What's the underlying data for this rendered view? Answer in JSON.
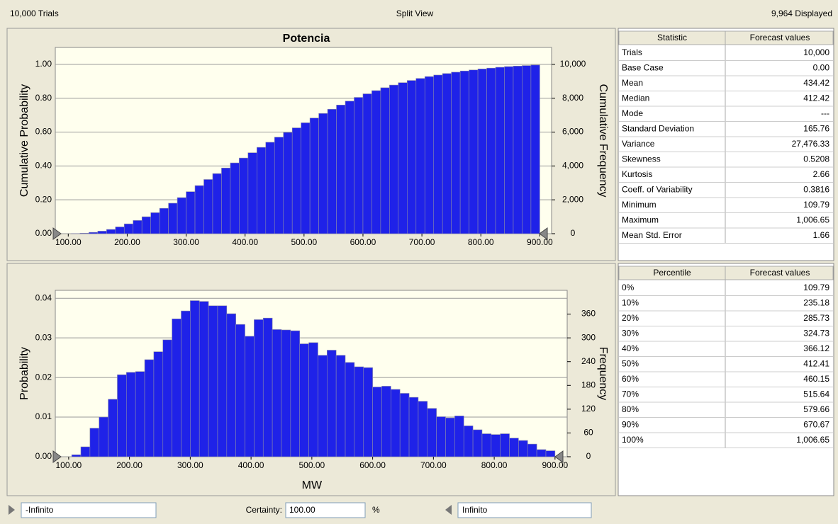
{
  "header": {
    "trials": "10,000 Trials",
    "view": "Split View",
    "displayed": "9,964 Displayed"
  },
  "chart_data": [
    {
      "type": "histogram",
      "title": "Potencia",
      "ylabel": "Cumulative Probability",
      "y2label": "Cumulative Frequency",
      "color": "#1f22e8",
      "grid": true,
      "bins": [
        105,
        120,
        135,
        150,
        165,
        180,
        195,
        210,
        225,
        240,
        255,
        270,
        285,
        300,
        315,
        330,
        345,
        360,
        375,
        390,
        405,
        420,
        435,
        450,
        465,
        480,
        495,
        510,
        525,
        540,
        555,
        570,
        585,
        600,
        615,
        630,
        645,
        660,
        675,
        690,
        705,
        720,
        735,
        750,
        765,
        780,
        795,
        810,
        825,
        840,
        855,
        870,
        885,
        900
      ],
      "values": [
        0.001,
        0.003,
        0.008,
        0.015,
        0.025,
        0.04,
        0.058,
        0.078,
        0.1,
        0.124,
        0.15,
        0.18,
        0.213,
        0.248,
        0.284,
        0.32,
        0.355,
        0.388,
        0.418,
        0.447,
        0.478,
        0.51,
        0.54,
        0.57,
        0.598,
        0.625,
        0.655,
        0.683,
        0.71,
        0.735,
        0.76,
        0.783,
        0.805,
        0.826,
        0.845,
        0.862,
        0.878,
        0.892,
        0.905,
        0.917,
        0.928,
        0.937,
        0.946,
        0.954,
        0.961,
        0.967,
        0.973,
        0.978,
        0.983,
        0.987,
        0.99,
        0.993,
        0.996
      ],
      "xlim": [
        78,
        920
      ],
      "xticks": [
        {
          "value": 100,
          "label": "100.00"
        },
        {
          "value": 200,
          "label": "200.00"
        },
        {
          "value": 300,
          "label": "300.00"
        },
        {
          "value": 400,
          "label": "400.00"
        },
        {
          "value": 500,
          "label": "500.00"
        },
        {
          "value": 600,
          "label": "600.00"
        },
        {
          "value": 700,
          "label": "700.00"
        },
        {
          "value": 800,
          "label": "800.00"
        },
        {
          "value": 900,
          "label": "900.00"
        }
      ],
      "ylim": [
        0,
        1.1
      ],
      "yticks": [
        {
          "value": 0,
          "label": "0.00"
        },
        {
          "value": 0.2,
          "label": "0.20"
        },
        {
          "value": 0.4,
          "label": "0.40"
        },
        {
          "value": 0.6,
          "label": "0.60"
        },
        {
          "value": 0.8,
          "label": "0.80"
        },
        {
          "value": 1,
          "label": "1.00"
        }
      ],
      "y2lim": [
        0,
        11000
      ],
      "y2ticks": [
        0,
        {
          "value": 2000,
          "label": "2,000"
        },
        {
          "value": 4000,
          "label": "4,000"
        },
        {
          "value": 6000,
          "label": "6,000"
        },
        {
          "value": 8000,
          "label": "8,000"
        },
        {
          "value": 10000,
          "label": "10,000"
        }
      ]
    },
    {
      "type": "histogram",
      "xlabel": "MW",
      "ylabel": "Probability",
      "y2label": "Frequency",
      "color": "#1f22e8",
      "grid": true,
      "bins": [
        105,
        120,
        135,
        150,
        165,
        180,
        195,
        210,
        225,
        240,
        255,
        270,
        285,
        300,
        315,
        330,
        345,
        360,
        375,
        390,
        405,
        420,
        435,
        450,
        465,
        480,
        495,
        510,
        525,
        540,
        555,
        570,
        585,
        600,
        615,
        630,
        645,
        660,
        675,
        690,
        705,
        720,
        735,
        750,
        765,
        780,
        795,
        810,
        825,
        840,
        855,
        870,
        885,
        900
      ],
      "values": [
        0.0005,
        0.0025,
        0.0072,
        0.01,
        0.0145,
        0.0207,
        0.0213,
        0.0215,
        0.0245,
        0.0265,
        0.0295,
        0.0348,
        0.0368,
        0.0394,
        0.0392,
        0.0381,
        0.0381,
        0.0361,
        0.0334,
        0.0304,
        0.0346,
        0.035,
        0.0321,
        0.032,
        0.0318,
        0.0285,
        0.0288,
        0.0256,
        0.0269,
        0.0256,
        0.0238,
        0.0227,
        0.0225,
        0.0176,
        0.0178,
        0.017,
        0.016,
        0.015,
        0.014,
        0.0122,
        0.0101,
        0.0098,
        0.0103,
        0.0078,
        0.0068,
        0.0058,
        0.0056,
        0.0058,
        0.0047,
        0.0041,
        0.0032,
        0.0018,
        0.0015
      ],
      "xlim": [
        78,
        920
      ],
      "xticks": [
        {
          "value": 100,
          "label": "100.00"
        },
        {
          "value": 200,
          "label": "200.00"
        },
        {
          "value": 300,
          "label": "300.00"
        },
        {
          "value": 400,
          "label": "400.00"
        },
        {
          "value": 500,
          "label": "500.00"
        },
        {
          "value": 600,
          "label": "600.00"
        },
        {
          "value": 700,
          "label": "700.00"
        },
        {
          "value": 800,
          "label": "800.00"
        },
        {
          "value": 900,
          "label": "900.00"
        }
      ],
      "ylim": [
        0,
        0.042
      ],
      "yticks": [
        {
          "value": 0,
          "label": "0.00"
        },
        {
          "value": 0.01,
          "label": "0.01"
        },
        {
          "value": 0.02,
          "label": "0.02"
        },
        {
          "value": 0.03,
          "label": "0.03"
        },
        {
          "value": 0.04,
          "label": "0.04"
        }
      ],
      "y2lim": [
        0,
        420
      ],
      "y2ticks": [
        0,
        60,
        120,
        180,
        240,
        300,
        360
      ]
    }
  ],
  "statistics": {
    "columns": [
      "Statistic",
      "Forecast values"
    ],
    "rows": [
      [
        "Trials",
        "10,000"
      ],
      [
        "Base Case",
        "0.00"
      ],
      [
        "Mean",
        "434.42"
      ],
      [
        "Median",
        "412.42"
      ],
      [
        "Mode",
        "---"
      ],
      [
        "Standard Deviation",
        "165.76"
      ],
      [
        "Variance",
        "27,476.33"
      ],
      [
        "Skewness",
        "0.5208"
      ],
      [
        "Kurtosis",
        "2.66"
      ],
      [
        "Coeff. of Variability",
        "0.3816"
      ],
      [
        "Minimum",
        "109.79"
      ],
      [
        "Maximum",
        "1,006.65"
      ],
      [
        "Mean Std. Error",
        "1.66"
      ]
    ]
  },
  "percentiles": {
    "columns": [
      "Percentile",
      "Forecast values"
    ],
    "rows": [
      [
        "0%",
        "109.79"
      ],
      [
        "10%",
        "235.18"
      ],
      [
        "20%",
        "285.73"
      ],
      [
        "30%",
        "324.73"
      ],
      [
        "40%",
        "366.12"
      ],
      [
        "50%",
        "412.41"
      ],
      [
        "60%",
        "460.15"
      ],
      [
        "70%",
        "515.64"
      ],
      [
        "80%",
        "579.66"
      ],
      [
        "90%",
        "670.67"
      ],
      [
        "100%",
        "1,006.65"
      ]
    ]
  },
  "footer": {
    "lower": "-Infinito",
    "certainty_label": "Certainty:",
    "certainty": "100.00",
    "unit": "%",
    "upper": "Infinito"
  }
}
